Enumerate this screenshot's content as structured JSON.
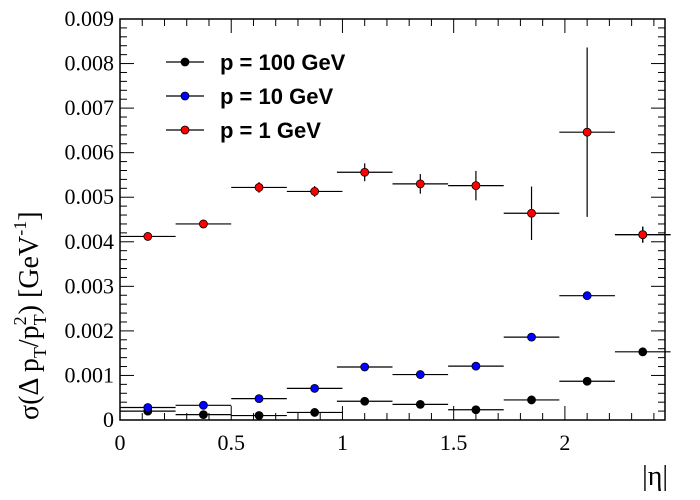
{
  "chart_data": {
    "type": "scatter",
    "title": "",
    "xlabel": "|η|",
    "ylabel": "σ(Δ p_T/p_T^2) [GeV^-1]",
    "ylabel_parts": {
      "sigma": "σ(Δ p",
      "sub_t1": "T",
      "slash": "/p",
      "sup_2": "2",
      "sub_t2": "T",
      "close": ") [GeV",
      "sup_m1": "-1",
      "end": "]"
    },
    "xlim": [
      0,
      2.45
    ],
    "ylim": [
      0,
      0.009
    ],
    "x_ticks": [
      {
        "v": 0,
        "label": "0"
      },
      {
        "v": 0.5,
        "label": "0.5"
      },
      {
        "v": 1,
        "label": "1"
      },
      {
        "v": 1.5,
        "label": "1.5"
      },
      {
        "v": 2,
        "label": "2"
      }
    ],
    "y_ticks": [
      {
        "v": 0,
        "label": "0"
      },
      {
        "v": 0.001,
        "label": "0.001"
      },
      {
        "v": 0.002,
        "label": "0.002"
      },
      {
        "v": 0.003,
        "label": "0.003"
      },
      {
        "v": 0.004,
        "label": "0.004"
      },
      {
        "v": 0.005,
        "label": "0.005"
      },
      {
        "v": 0.006,
        "label": "0.006"
      },
      {
        "v": 0.007,
        "label": "0.007"
      },
      {
        "v": 0.008,
        "label": "0.008"
      },
      {
        "v": 0.009,
        "label": "0.009"
      }
    ],
    "x_centers": [
      0.125,
      0.375,
      0.625,
      0.875,
      1.1,
      1.35,
      1.6,
      1.85,
      2.1,
      2.35
    ],
    "x_half_width": 0.125,
    "legend_position": "top-left",
    "series": [
      {
        "name": "p = 100 GeV",
        "color": "#000000",
        "values": [
          0.0002,
          0.00012,
          0.0001,
          0.00017,
          0.00042,
          0.00035,
          0.00023,
          0.00045,
          0.00087,
          0.00153
        ],
        "errors": [
          2e-05,
          2e-05,
          2e-05,
          2e-05,
          4e-05,
          4e-05,
          4e-05,
          5e-05,
          6e-05,
          8e-05
        ]
      },
      {
        "name": "p = 10 GeV",
        "color": "#0000ff",
        "values": [
          0.00028,
          0.00033,
          0.00048,
          0.00071,
          0.00119,
          0.00102,
          0.00121,
          0.00186,
          0.00279,
          0.00416
        ],
        "errors": [
          2e-05,
          2e-05,
          3e-05,
          4e-05,
          5e-05,
          5e-05,
          5e-05,
          6e-05,
          8e-05,
          0.00018
        ]
      },
      {
        "name": "p = 1 GeV",
        "color": "#ff0000",
        "values": [
          0.00412,
          0.0044,
          0.00522,
          0.00513,
          0.00556,
          0.0053,
          0.00526,
          0.00464,
          0.00646,
          0.00416
        ],
        "errors": [
          5e-05,
          5e-05,
          0.00012,
          0.00012,
          0.0002,
          0.00022,
          0.00033,
          0.0006,
          0.0019,
          0.00018
        ]
      }
    ]
  }
}
